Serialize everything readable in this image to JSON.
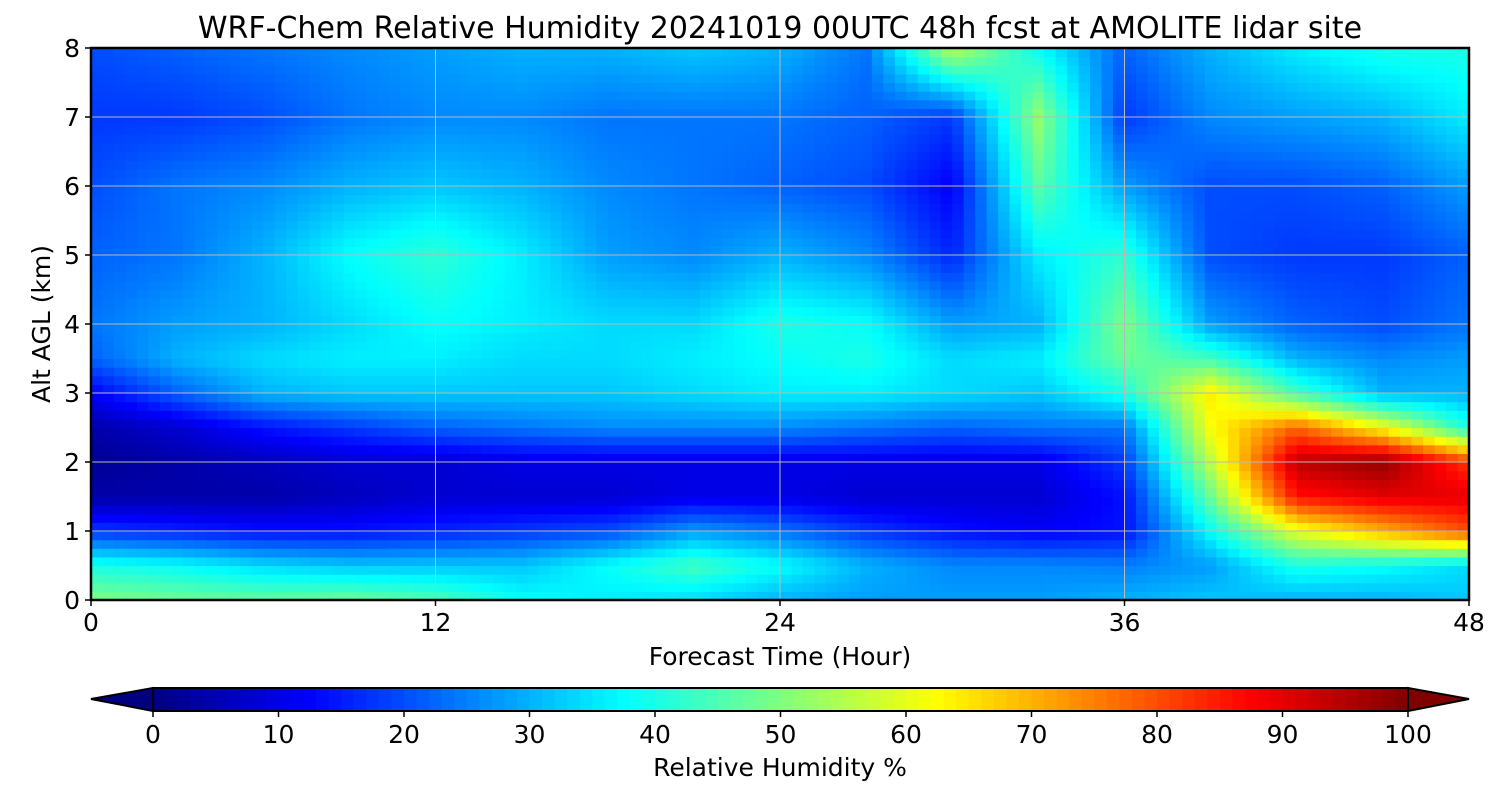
{
  "chart_data": {
    "type": "heatmap",
    "title": "WRF-Chem Relative Humidity 20241019 00UTC 48h fcst at AMOLITE lidar site",
    "xlabel": "Forecast Time (Hour)",
    "ylabel": "Alt AGL (km)",
    "xlim": [
      0,
      48
    ],
    "ylim": [
      0,
      8
    ],
    "xticks": [
      0,
      12,
      24,
      36,
      48
    ],
    "yticks": [
      0,
      1,
      2,
      3,
      4,
      5,
      6,
      7,
      8
    ],
    "grid": true,
    "colormap": "jet",
    "colorbar": {
      "label": "Relative Humidity %",
      "orientation": "horizontal",
      "placement": "bottom",
      "range": [
        0,
        100
      ],
      "ticks": [
        0,
        10,
        20,
        30,
        40,
        50,
        60,
        70,
        80,
        90,
        100
      ],
      "extend": "both"
    },
    "x": [
      0,
      3,
      6,
      9,
      12,
      15,
      18,
      21,
      24,
      27,
      30,
      33,
      36,
      39,
      42,
      45,
      48
    ],
    "y": [
      0,
      0.5,
      1,
      1.5,
      2,
      2.5,
      3,
      3.5,
      4,
      5,
      6,
      7,
      8
    ],
    "z": [
      [
        50,
        48,
        47,
        48,
        45,
        38,
        36,
        34,
        30,
        28,
        28,
        28,
        30,
        32,
        30,
        30,
        32
      ],
      [
        40,
        38,
        34,
        32,
        32,
        32,
        38,
        44,
        38,
        30,
        26,
        26,
        25,
        28,
        40,
        38,
        34
      ],
      [
        18,
        16,
        14,
        14,
        16,
        18,
        20,
        28,
        24,
        18,
        14,
        12,
        14,
        38,
        60,
        70,
        80
      ],
      [
        4,
        4,
        4,
        6,
        8,
        8,
        8,
        10,
        10,
        8,
        8,
        8,
        14,
        48,
        86,
        90,
        90
      ],
      [
        2,
        4,
        6,
        8,
        8,
        10,
        10,
        10,
        10,
        10,
        10,
        10,
        18,
        56,
        94,
        98,
        82
      ],
      [
        4,
        8,
        14,
        18,
        22,
        24,
        26,
        26,
        26,
        24,
        22,
        24,
        24,
        62,
        78,
        62,
        40
      ],
      [
        12,
        22,
        30,
        32,
        32,
        32,
        32,
        34,
        36,
        36,
        34,
        32,
        40,
        64,
        44,
        30,
        30
      ],
      [
        22,
        30,
        34,
        36,
        36,
        34,
        34,
        36,
        38,
        40,
        34,
        36,
        48,
        44,
        30,
        26,
        28
      ],
      [
        24,
        28,
        30,
        34,
        38,
        36,
        34,
        34,
        40,
        38,
        28,
        30,
        50,
        28,
        22,
        20,
        24
      ],
      [
        22,
        24,
        30,
        38,
        42,
        36,
        28,
        26,
        30,
        26,
        16,
        36,
        42,
        20,
        18,
        18,
        22
      ],
      [
        20,
        24,
        26,
        30,
        32,
        30,
        26,
        24,
        22,
        20,
        12,
        46,
        28,
        20,
        20,
        22,
        28
      ],
      [
        18,
        18,
        20,
        24,
        26,
        26,
        24,
        24,
        24,
        22,
        18,
        52,
        18,
        26,
        28,
        30,
        36
      ],
      [
        20,
        22,
        24,
        26,
        28,
        30,
        30,
        32,
        30,
        24,
        56,
        38,
        22,
        30,
        36,
        40,
        40
      ]
    ]
  }
}
